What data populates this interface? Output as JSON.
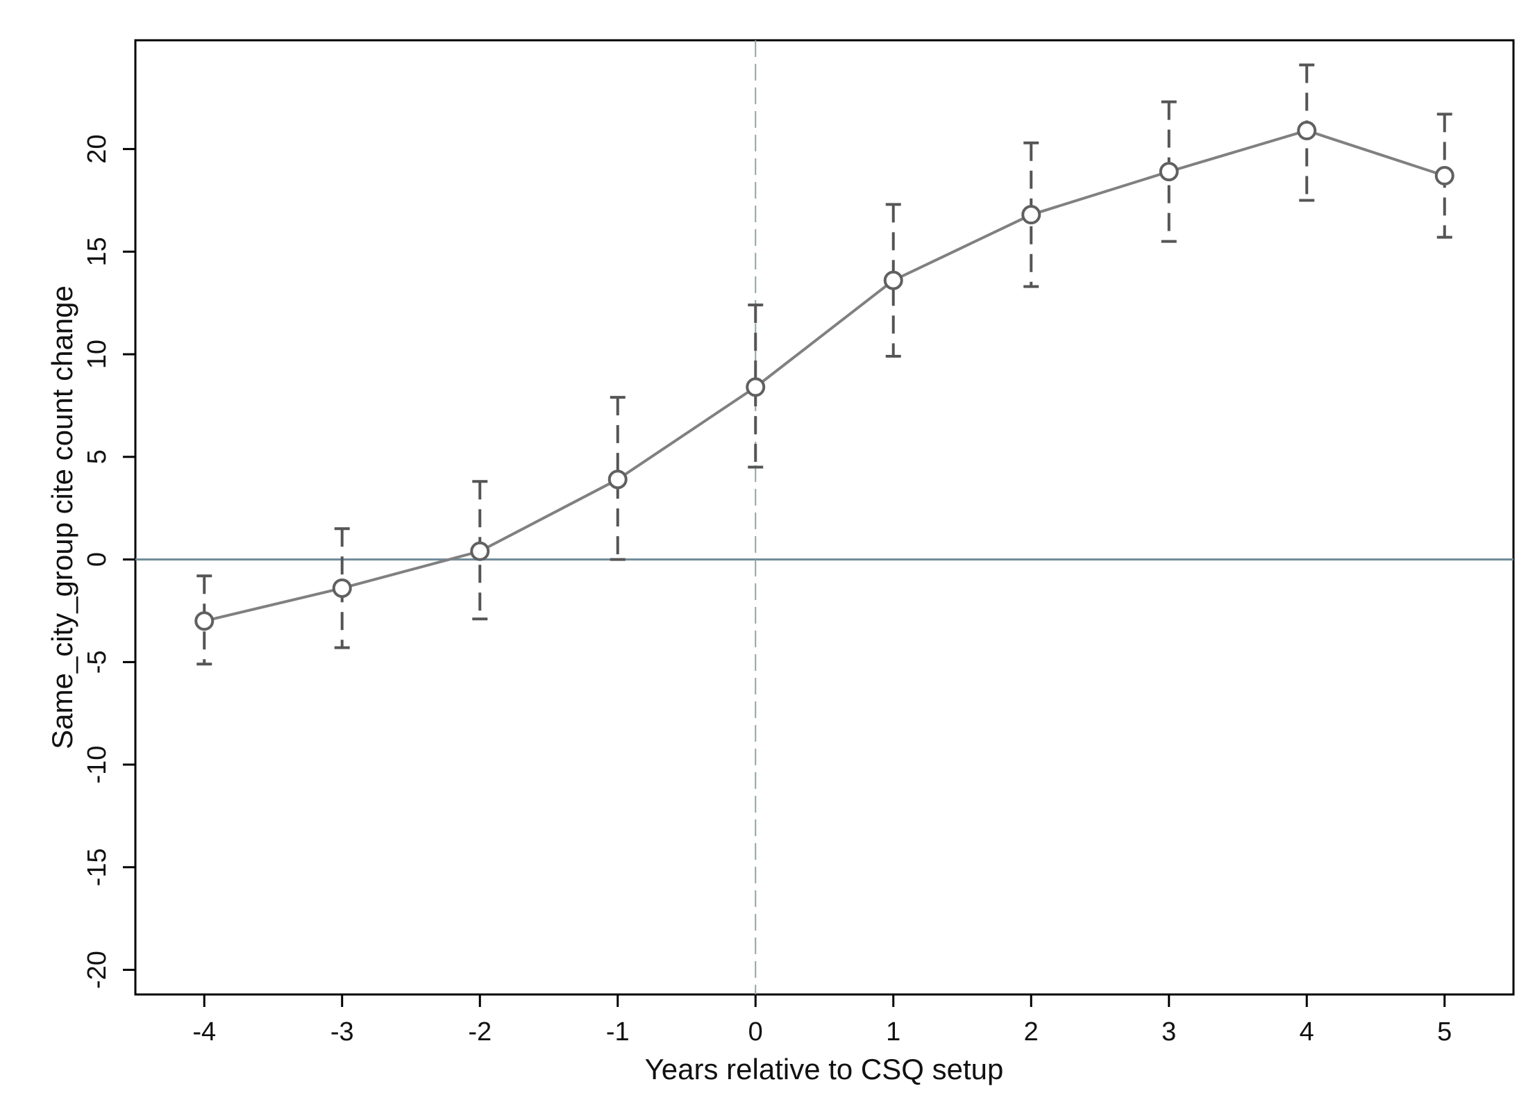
{
  "chart_data": {
    "type": "line",
    "xlabel": "Years relative to CSQ setup",
    "ylabel": "Same_city_group cite count change",
    "xlim": [
      -4.5,
      5.5
    ],
    "ylim": [
      -21.2,
      25.3
    ],
    "x_ticks": [
      "-4",
      "-3",
      "-2",
      "-1",
      "0",
      "1",
      "2",
      "3",
      "4",
      "5"
    ],
    "y_ticks": [
      "-20",
      "-15",
      "-10",
      "-5",
      "0",
      "5",
      "10",
      "15",
      "20"
    ],
    "grid": false,
    "reference_lines": {
      "horizontal_y": 0,
      "vertical_x": 0
    },
    "series": [
      {
        "x": [
          -4,
          -3,
          -2,
          -1,
          0,
          1,
          2,
          3,
          4,
          5
        ],
        "values": [
          -3.0,
          -1.4,
          0.4,
          3.9,
          8.4,
          13.6,
          16.8,
          18.9,
          20.9,
          18.7
        ],
        "ci_lower": [
          -5.1,
          -4.3,
          -2.9,
          0.0,
          4.5,
          9.9,
          13.3,
          15.5,
          17.5,
          15.7
        ],
        "ci_upper": [
          -0.8,
          1.5,
          3.8,
          7.9,
          12.4,
          17.3,
          20.3,
          22.3,
          24.1,
          21.7
        ]
      }
    ],
    "colors": {
      "line": "#808080",
      "marker": "#606060",
      "error_bar": "#555555",
      "zero_line": "#6f8a99",
      "vertical_line": "#8aa8a0",
      "axis": "#000000"
    }
  }
}
